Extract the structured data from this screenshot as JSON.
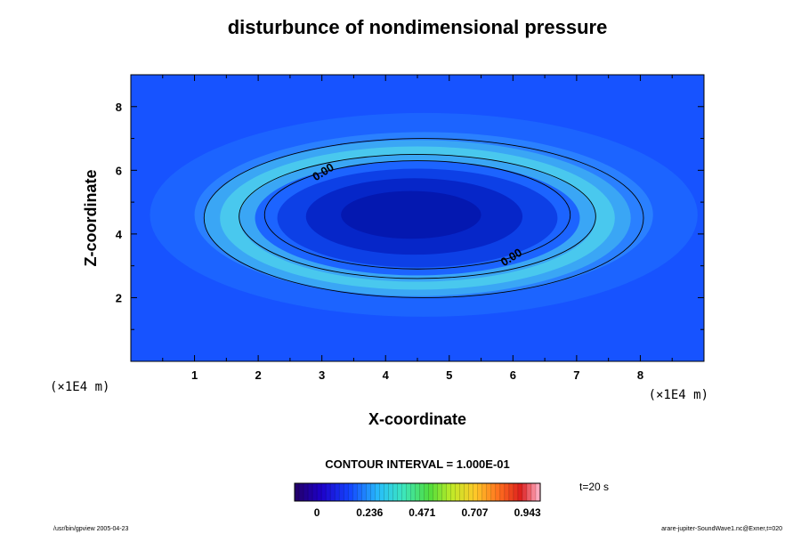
{
  "chart_data": {
    "type": "heatmap",
    "title": "disturbunce of nondimensional pressure",
    "xlabel": "X-coordinate",
    "ylabel": "Z-coordinate",
    "xunit": "(×1E4 m)",
    "yunit": "(×1E4 m)",
    "xlim": [
      0,
      9
    ],
    "ylim": [
      0,
      9
    ],
    "x_ticks": [
      1,
      2,
      3,
      4,
      5,
      6,
      7,
      8
    ],
    "y_ticks": [
      2,
      4,
      6,
      8
    ],
    "contour_interval_label": "CONTOUR INTERVAL = 1.000E-01",
    "time_label": "t=20 s",
    "contour_labels": [
      "0.00",
      "0.00"
    ],
    "ellipses": [
      {
        "cx": 4.6,
        "cz": 4.6,
        "rx": 4.3,
        "rz": 3.2,
        "color": "#1c64ff"
      },
      {
        "cx": 4.6,
        "cz": 4.6,
        "rx": 3.6,
        "rz": 2.6,
        "color": "#2a80ff"
      },
      {
        "cx": 4.5,
        "cz": 4.5,
        "rx": 3.35,
        "rz": 2.45,
        "color": "#3aa6f5"
      },
      {
        "cx": 4.5,
        "cz": 4.5,
        "rx": 3.1,
        "rz": 2.25,
        "color": "#49c8ee"
      },
      {
        "cx": 4.5,
        "cz": 4.5,
        "rx": 2.8,
        "rz": 2.0,
        "color": "#3aa6f5"
      },
      {
        "cx": 4.5,
        "cz": 4.5,
        "rx": 2.55,
        "rz": 1.8,
        "color": "#1c64ff"
      },
      {
        "cx": 4.5,
        "cz": 4.5,
        "rx": 2.2,
        "rz": 1.55,
        "color": "#0d40e6"
      },
      {
        "cx": 4.45,
        "cz": 4.55,
        "rx": 1.7,
        "rz": 1.2,
        "color": "#0626c8"
      },
      {
        "cx": 4.4,
        "cz": 4.6,
        "rx": 1.1,
        "rz": 0.75,
        "color": "#0418b0"
      }
    ],
    "contours": [
      {
        "cx": 4.6,
        "cz": 4.5,
        "rx": 3.45,
        "rz": 2.5
      },
      {
        "cx": 4.5,
        "cz": 4.55,
        "rx": 2.8,
        "rz": 1.95
      },
      {
        "cx": 4.5,
        "cz": 4.6,
        "rx": 2.4,
        "rz": 1.7
      }
    ],
    "background_color": "#1753ff",
    "colorbar": {
      "ticks": [
        "0",
        "0.236",
        "0.471",
        "0.707",
        "0.943"
      ],
      "tick_values": [
        0,
        0.236,
        0.471,
        0.707,
        0.943
      ],
      "range": [
        -0.1,
        1.0
      ]
    }
  },
  "footer": {
    "left": "/usr/bin/gpview 2005-04-23",
    "right": "arare-jupiter-SoundWave1.nc@Exner,t=020"
  }
}
